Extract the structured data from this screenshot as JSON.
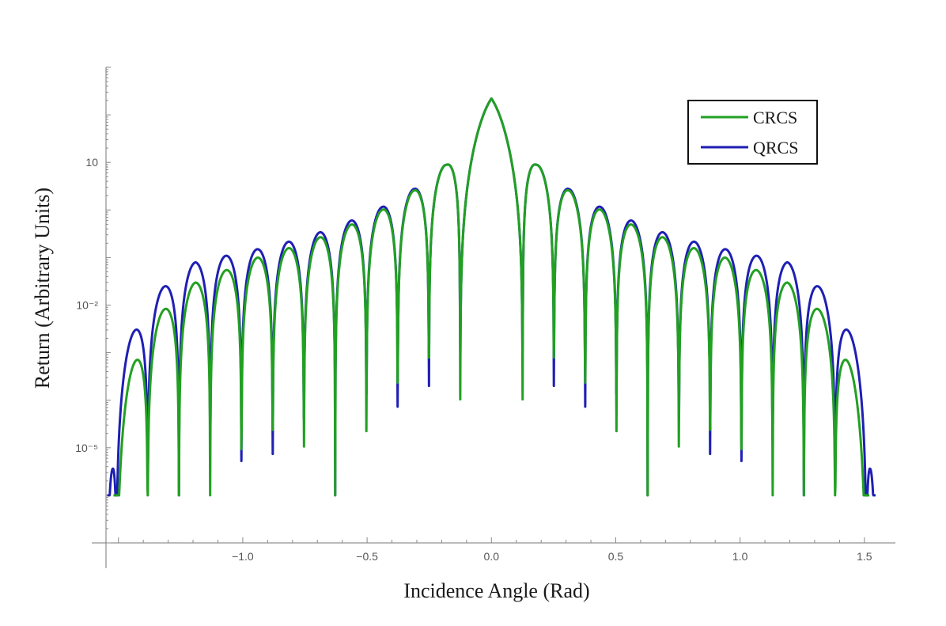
{
  "chart_data": {
    "type": "line",
    "title": "",
    "xlabel": "Incidence Angle (Rad)",
    "ylabel": "Return (Arbitrary Units)",
    "xlim": [
      -1.55,
      1.58
    ],
    "ylim": [
      1e-07,
      1000
    ],
    "yscale": "log",
    "x_ticks": [
      {
        "value": -1.0,
        "label": "−1.0"
      },
      {
        "value": -0.5,
        "label": "−0.5"
      },
      {
        "value": 0.0,
        "label": "0.0"
      },
      {
        "value": 0.5,
        "label": "0.5"
      },
      {
        "value": 1.0,
        "label": "1.0"
      },
      {
        "value": 1.5,
        "label": "1.5"
      }
    ],
    "y_ticks": [
      {
        "value": 10,
        "label": "10"
      },
      {
        "value": 0.01,
        "label": "10⁻²"
      },
      {
        "value": 1e-05,
        "label": "10⁻⁵"
      }
    ],
    "grid": false,
    "legend_position": "top-right",
    "series": [
      {
        "name": "CRCS",
        "color": "#22a022",
        "model": "sinc",
        "peak": 220,
        "lobe_spacing": 0.12566,
        "edge_angle": 1.52,
        "floor": 1e-06,
        "x": [
          0.0,
          0.18,
          0.31,
          0.44,
          0.58,
          0.75,
          0.94,
          1.19
        ],
        "values": [
          220,
          9.3,
          2.6,
          1.0,
          0.45,
          0.2,
          0.1,
          0.03
        ]
      },
      {
        "name": "QRCS",
        "color": "#1f1fb4",
        "model": "sinc",
        "peak": 220,
        "lobe_spacing": 0.12566,
        "edge_angle": 1.545,
        "floor": 1e-06,
        "x": [
          0.0,
          0.18,
          0.31,
          0.44,
          0.58,
          0.75,
          0.94,
          1.19
        ],
        "values": [
          220,
          9.3,
          2.8,
          1.15,
          0.55,
          0.26,
          0.15,
          0.08
        ]
      }
    ]
  }
}
